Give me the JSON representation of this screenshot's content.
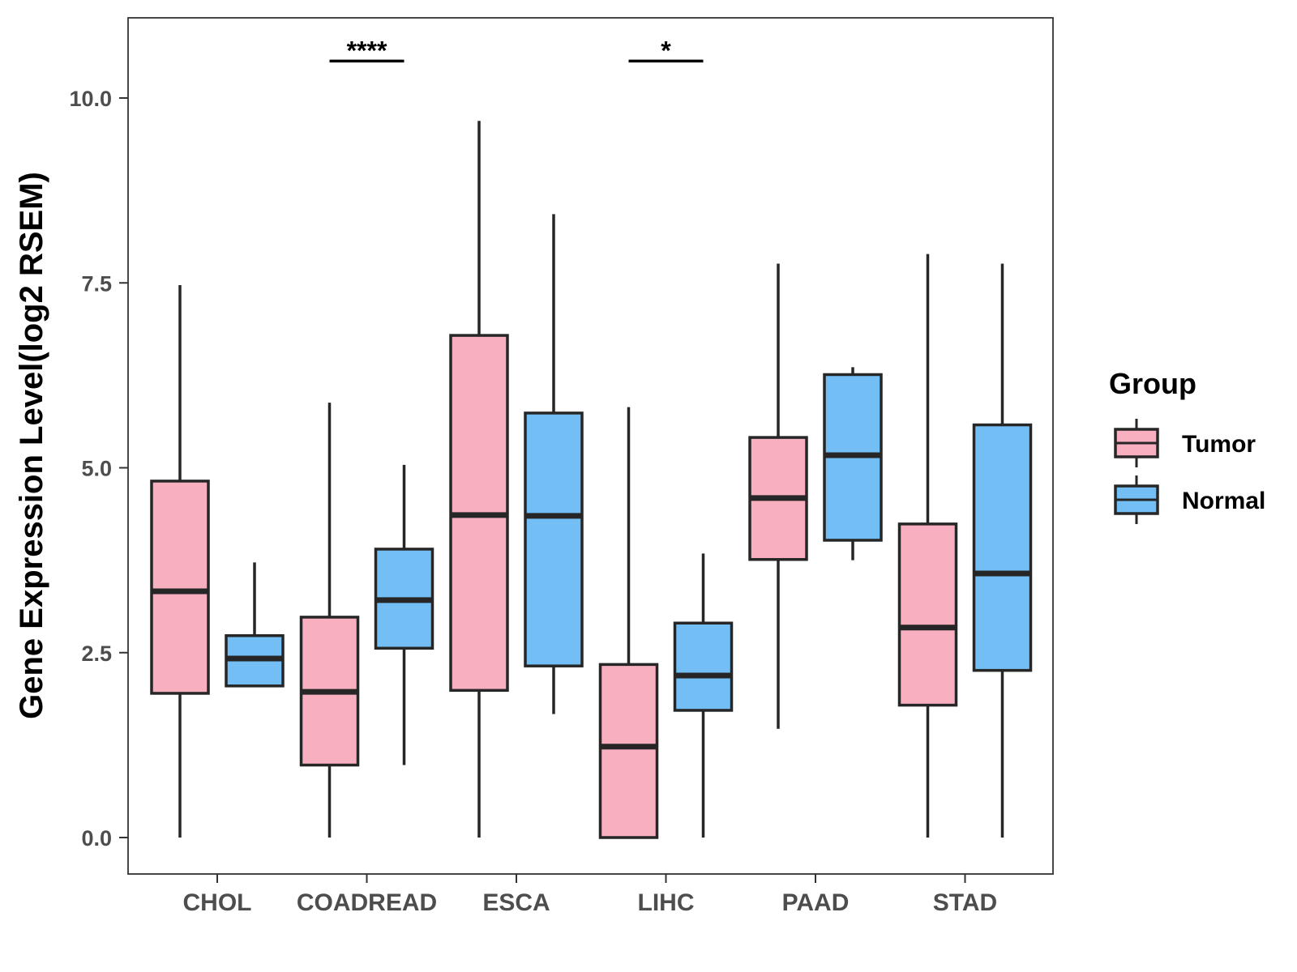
{
  "chart_data": {
    "type": "boxplot",
    "title": "",
    "xlabel": "",
    "ylabel": "Gene Expression Level(log2 RSEM)",
    "ylim": [
      -0.5,
      11.1
    ],
    "yticks": [
      0.0,
      2.5,
      5.0,
      7.5,
      10.0
    ],
    "ytick_labels": [
      "0.0",
      "2.5",
      "5.0",
      "7.5",
      "10.0"
    ],
    "categories": [
      "CHOL",
      "COADREAD",
      "ESCA",
      "LIHC",
      "PAAD",
      "STAD"
    ],
    "legend": {
      "title": "Group",
      "placement": "right",
      "items": [
        {
          "label": "Tumor",
          "color": "#F8AFC0"
        },
        {
          "label": "Normal",
          "color": "#73BFF5"
        }
      ]
    },
    "series": [
      {
        "name": "Tumor",
        "color": "#F8AFC0",
        "boxes": [
          {
            "category": "CHOL",
            "min": 0.0,
            "q1": 1.95,
            "median": 3.33,
            "q3": 4.82,
            "max": 7.47
          },
          {
            "category": "COADREAD",
            "min": 0.0,
            "q1": 0.98,
            "median": 1.97,
            "q3": 2.98,
            "max": 5.88
          },
          {
            "category": "ESCA",
            "min": 0.0,
            "q1": 1.99,
            "median": 4.36,
            "q3": 6.79,
            "max": 9.69
          },
          {
            "category": "LIHC",
            "min": 0.0,
            "q1": 0.0,
            "median": 1.23,
            "q3": 2.34,
            "max": 5.82
          },
          {
            "category": "PAAD",
            "min": 1.47,
            "q1": 3.76,
            "median": 4.59,
            "q3": 5.41,
            "max": 7.76
          },
          {
            "category": "STAD",
            "min": 0.0,
            "q1": 1.79,
            "median": 2.84,
            "q3": 4.24,
            "max": 7.89
          }
        ]
      },
      {
        "name": "Normal",
        "color": "#73BFF5",
        "boxes": [
          {
            "category": "CHOL",
            "min": 2.05,
            "q1": 2.05,
            "median": 2.42,
            "q3": 2.73,
            "max": 3.72
          },
          {
            "category": "COADREAD",
            "min": 0.98,
            "q1": 2.56,
            "median": 3.21,
            "q3": 3.9,
            "max": 5.04
          },
          {
            "category": "ESCA",
            "min": 1.67,
            "q1": 2.32,
            "median": 4.35,
            "q3": 5.74,
            "max": 8.43
          },
          {
            "category": "LIHC",
            "min": 0.0,
            "q1": 1.72,
            "median": 2.19,
            "q3": 2.9,
            "max": 3.84
          },
          {
            "category": "PAAD",
            "min": 3.75,
            "q1": 4.02,
            "median": 5.17,
            "q3": 6.26,
            "max": 6.36
          },
          {
            "category": "STAD",
            "min": 0.0,
            "q1": 2.26,
            "median": 3.57,
            "q3": 5.58,
            "max": 7.76
          }
        ]
      }
    ],
    "significance": [
      {
        "category": "COADREAD",
        "label": "****",
        "y": 10.5
      },
      {
        "category": "LIHC",
        "label": "*",
        "y": 10.5
      }
    ]
  }
}
